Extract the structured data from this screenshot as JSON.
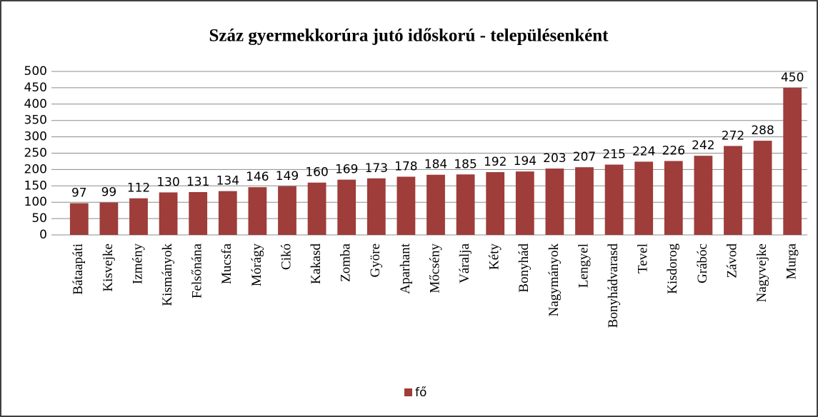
{
  "chart_data": {
    "type": "bar",
    "title": "Száz gyermekkorúra jutó időskorú - településenként",
    "categories": [
      "Bátaapáti",
      "Kisvejke",
      "Izmény",
      "Kismányok",
      "Felsőnána",
      "Mucsfa",
      "Mórágy",
      "Cikó",
      "Kakasd",
      "Zomba",
      "Györe",
      "Aparhant",
      "Mőcsény",
      "Váralja",
      "Kéty",
      "Bonyhád",
      "Nagymányok",
      "Lengyel",
      "Bonyhádvarasd",
      "Tevel",
      "Kisdorog",
      "Grábóc",
      "Závod",
      "Nagyvejke",
      "Murga"
    ],
    "series": [
      {
        "name": "fő",
        "color": "#9e3d3a",
        "values": [
          97,
          99,
          112,
          130,
          131,
          134,
          146,
          149,
          160,
          169,
          173,
          178,
          184,
          185,
          192,
          194,
          203,
          207,
          215,
          224,
          226,
          242,
          272,
          288,
          450
        ]
      }
    ],
    "ylim": [
      0,
      500
    ],
    "yticks": [
      0,
      50,
      100,
      150,
      200,
      250,
      300,
      350,
      400,
      450,
      500
    ],
    "grid": true,
    "legend": "bottom"
  }
}
